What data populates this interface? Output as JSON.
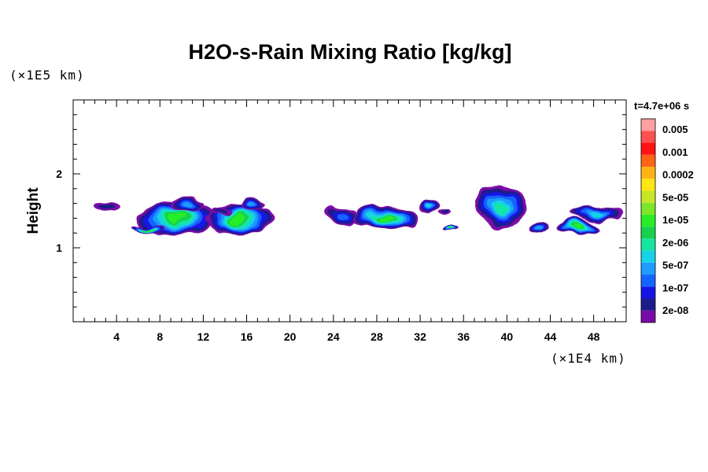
{
  "chart_data": {
    "type": "heatmap",
    "title": "H2O-s-Rain Mixing Ratio [kg/kg]",
    "ylabel": "Height",
    "xunit": "(×1E4 km)",
    "yunit": "(×1E5 km)",
    "time_label": "t=4.7e+06 s",
    "xlim": [
      0,
      51
    ],
    "ylim": [
      0,
      3
    ],
    "xticks": [
      4,
      8,
      12,
      16,
      20,
      24,
      28,
      32,
      36,
      40,
      44,
      48
    ],
    "xtick_labels": [
      "4",
      "8",
      "12",
      "16",
      "20",
      "24",
      "28",
      "32",
      "36",
      "40",
      "44",
      "48"
    ],
    "yticks": [
      1,
      2
    ],
    "ytick_labels": [
      "1",
      "2"
    ],
    "colorbar": {
      "labels": [
        "0.005",
        "0.001",
        "0.0002",
        "5e-05",
        "1e-05",
        "2e-06",
        "5e-07",
        "1e-07",
        "2e-08"
      ],
      "colors": [
        "#7a0aa6",
        "#1b1c8a",
        "#1414e6",
        "#1464ff",
        "#1e9bff",
        "#16d2e6",
        "#17e6a3",
        "#17d24e",
        "#28ee28",
        "#7ee628",
        "#c8e628",
        "#ffe614",
        "#ffb414",
        "#ff6414",
        "#ff1414",
        "#ff5050",
        "#ffa0a0"
      ]
    },
    "cells": [
      {
        "x": 3.2,
        "y": 1.55,
        "rx": 1.2,
        "ry": 0.07,
        "level": 1
      },
      {
        "x": 9.5,
        "y": 1.4,
        "rx": 3.6,
        "ry": 0.22,
        "level": 8
      },
      {
        "x": 10.5,
        "y": 1.58,
        "rx": 1.4,
        "ry": 0.1,
        "level": 4
      },
      {
        "x": 7.0,
        "y": 1.27,
        "rx": 1.8,
        "ry": 0.04,
        "level": 8
      },
      {
        "x": 15.2,
        "y": 1.38,
        "rx": 3.0,
        "ry": 0.2,
        "level": 8
      },
      {
        "x": 16.5,
        "y": 1.58,
        "rx": 1.2,
        "ry": 0.1,
        "level": 4
      },
      {
        "x": 13.5,
        "y": 1.48,
        "rx": 1.0,
        "ry": 0.05,
        "level": 1
      },
      {
        "x": 24.8,
        "y": 1.45,
        "rx": 1.6,
        "ry": 0.13,
        "level": 3
      },
      {
        "x": 28.8,
        "y": 1.4,
        "rx": 3.0,
        "ry": 0.16,
        "level": 8
      },
      {
        "x": 32.8,
        "y": 1.55,
        "rx": 1.0,
        "ry": 0.12,
        "level": 5
      },
      {
        "x": 34.8,
        "y": 1.27,
        "rx": 0.8,
        "ry": 0.04,
        "level": 8
      },
      {
        "x": 34.3,
        "y": 1.46,
        "rx": 0.6,
        "ry": 0.03,
        "level": 1
      },
      {
        "x": 39.5,
        "y": 1.55,
        "rx": 2.4,
        "ry": 0.28,
        "level": 6
      },
      {
        "x": 43.0,
        "y": 1.28,
        "rx": 0.8,
        "ry": 0.06,
        "level": 4
      },
      {
        "x": 46.5,
        "y": 1.28,
        "rx": 1.8,
        "ry": 0.09,
        "level": 8
      },
      {
        "x": 48.3,
        "y": 1.46,
        "rx": 2.4,
        "ry": 0.1,
        "level": 5
      }
    ]
  }
}
